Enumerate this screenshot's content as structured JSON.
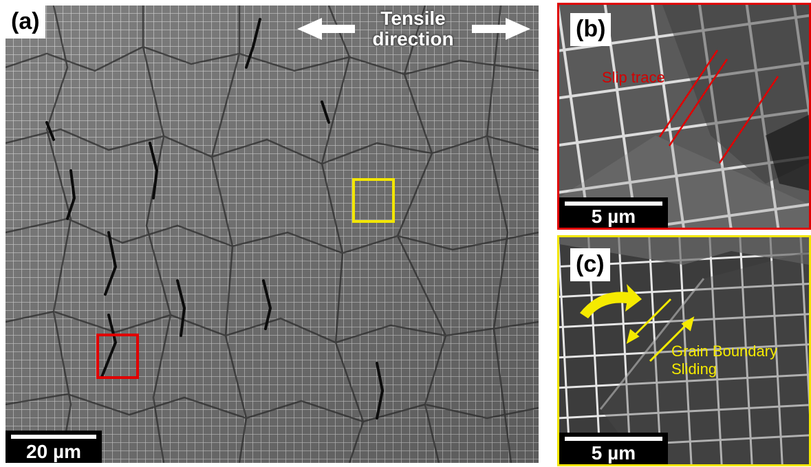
{
  "panels": {
    "a": {
      "label": "(a)",
      "scale_bar": "20 µm",
      "annotation_line1": "Tensile",
      "annotation_line2": "direction",
      "box_colors": {
        "red": "#e00000",
        "yellow": "#f2e600"
      }
    },
    "b": {
      "label": "(b)",
      "scale_bar": "5 µm",
      "annotation": "Slip trace",
      "border_color": "#e00000",
      "annotation_color": "#d40000"
    },
    "c": {
      "label": "(c)",
      "scale_bar": "5 µm",
      "annotation_line1": "Grain Boundary",
      "annotation_line2": "Sliding",
      "border_color": "#f2e600",
      "annotation_color": "#f5ea00"
    }
  }
}
